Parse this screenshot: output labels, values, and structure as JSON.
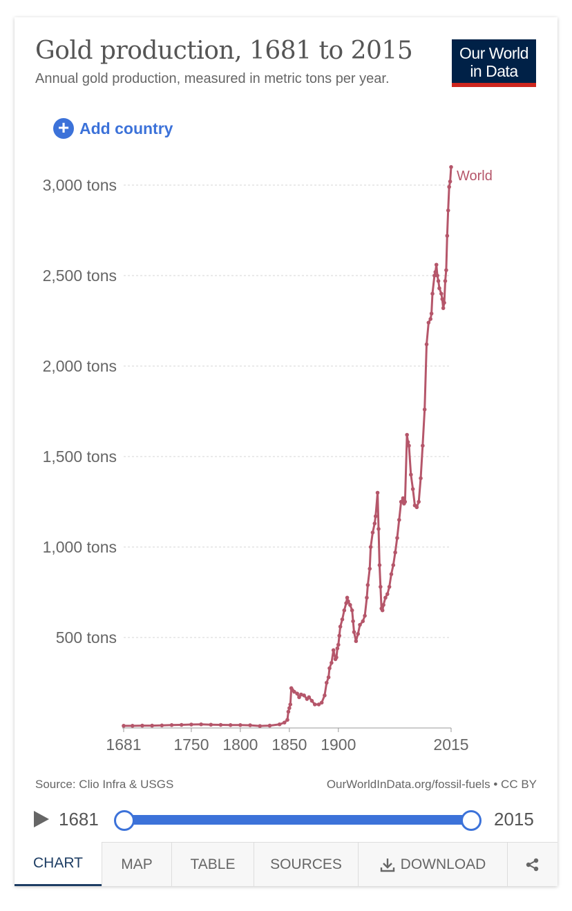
{
  "header": {
    "title": "Gold production, 1681 to 2015",
    "subtitle": "Annual gold production, measured in metric tons per year.",
    "logo_line1": "Our World",
    "logo_line2": "in Data"
  },
  "add_country_label": "Add country",
  "colors": {
    "series": "#b5566a",
    "accent": "#3c72d9",
    "logo_bg": "#002147",
    "logo_bar": "#ce261e"
  },
  "chart_data": {
    "type": "line",
    "title": "Gold production, 1681 to 2015",
    "ylim": [
      0,
      3100
    ],
    "xlim": [
      1681,
      2015
    ],
    "y_ticks": [
      500,
      1000,
      1500,
      2000,
      2500,
      3000
    ],
    "y_tick_labels": [
      "500 tons",
      "1,000 tons",
      "1,500 tons",
      "2,000 tons",
      "2,500 tons",
      "3,000 tons"
    ],
    "x_ticks": [
      1681,
      1750,
      1800,
      1850,
      1900,
      2015
    ],
    "x_tick_labels": [
      "1681",
      "1750",
      "1800",
      "1850",
      "1900",
      "2015"
    ],
    "grid": "horizontal",
    "series": [
      {
        "name": "World",
        "x": [
          1681,
          1690,
          1700,
          1710,
          1720,
          1730,
          1740,
          1750,
          1760,
          1770,
          1780,
          1790,
          1800,
          1810,
          1820,
          1830,
          1840,
          1845,
          1848,
          1849,
          1850,
          1851,
          1852,
          1853,
          1855,
          1858,
          1860,
          1862,
          1865,
          1868,
          1870,
          1873,
          1876,
          1880,
          1883,
          1886,
          1888,
          1890,
          1891,
          1893,
          1895,
          1897,
          1898,
          1899,
          1900,
          1901,
          1902,
          1904,
          1906,
          1908,
          1909,
          1910,
          1912,
          1914,
          1915,
          1916,
          1918,
          1920,
          1922,
          1925,
          1927,
          1929,
          1930,
          1932,
          1933,
          1935,
          1937,
          1938,
          1940,
          1941,
          1942,
          1943,
          1944,
          1945,
          1946,
          1948,
          1950,
          1952,
          1954,
          1956,
          1958,
          1960,
          1962,
          1964,
          1966,
          1967,
          1968,
          1970,
          1971,
          1972,
          1974,
          1976,
          1978,
          1980,
          1982,
          1984,
          1986,
          1988,
          1990,
          1992,
          1994,
          1995,
          1996,
          1998,
          1999,
          2000,
          2001,
          2002,
          2003,
          2005,
          2006,
          2007,
          2008,
          2009,
          2010,
          2011,
          2012,
          2013,
          2014,
          2015
        ],
        "values": [
          12,
          12,
          13,
          13,
          14,
          16,
          17,
          19,
          20,
          18,
          17,
          16,
          16,
          15,
          11,
          13,
          20,
          30,
          45,
          90,
          110,
          130,
          220,
          210,
          200,
          190,
          170,
          185,
          180,
          160,
          170,
          150,
          130,
          130,
          140,
          180,
          250,
          280,
          330,
          360,
          430,
          380,
          390,
          440,
          460,
          510,
          560,
          600,
          650,
          690,
          720,
          700,
          680,
          650,
          590,
          530,
          480,
          520,
          570,
          590,
          620,
          720,
          790,
          880,
          1000,
          1080,
          1130,
          1170,
          1300,
          1100,
          900,
          780,
          660,
          650,
          680,
          720,
          740,
          780,
          850,
          900,
          970,
          1050,
          1150,
          1250,
          1270,
          1240,
          1250,
          1620,
          1580,
          1560,
          1400,
          1320,
          1230,
          1220,
          1250,
          1380,
          1560,
          1760,
          2120,
          2240,
          2260,
          2290,
          2400,
          2500,
          2520,
          2560,
          2500,
          2470,
          2430,
          2400,
          2370,
          2320,
          2350,
          2470,
          2530,
          2720,
          2860,
          2990,
          3020,
          3100
        ]
      }
    ]
  },
  "footer": {
    "source": "Source: Clio Infra & USGS",
    "attribution": "OurWorldInData.org/fossil-fuels • CC BY"
  },
  "timeline": {
    "start_year": "1681",
    "end_year": "2015"
  },
  "tabs": {
    "chart": "CHART",
    "map": "MAP",
    "table": "TABLE",
    "sources": "SOURCES",
    "download": "DOWNLOAD"
  },
  "icons": {
    "add": "plus-circle-icon",
    "play": "play-icon",
    "download": "download-icon",
    "share": "share-icon"
  }
}
